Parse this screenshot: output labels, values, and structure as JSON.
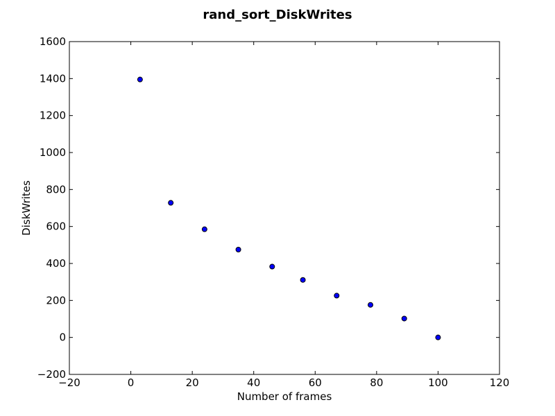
{
  "chart_data": {
    "type": "scatter",
    "title": "rand_sort_DiskWrites",
    "xlabel": "Number of frames",
    "ylabel": "DiskWrites",
    "xlim": [
      -20,
      120
    ],
    "ylim": [
      -200,
      1600
    ],
    "xticks": [
      -20,
      0,
      20,
      40,
      60,
      80,
      100,
      120
    ],
    "xtick_labels": [
      "−20",
      "0",
      "20",
      "40",
      "60",
      "80",
      "100",
      "120"
    ],
    "yticks": [
      -200,
      0,
      200,
      400,
      600,
      800,
      1000,
      1200,
      1400,
      1600
    ],
    "ytick_labels": [
      "−200",
      "0",
      "200",
      "400",
      "600",
      "800",
      "1000",
      "1200",
      "1400",
      "1600"
    ],
    "grid": false,
    "marker_color": "#0000ff",
    "series": [
      {
        "x": [
          3,
          13,
          24,
          35,
          46,
          56,
          67,
          78,
          89,
          100
        ],
        "y": [
          1395,
          728,
          585,
          475,
          383,
          311,
          226,
          176,
          102,
          0
        ]
      }
    ]
  }
}
